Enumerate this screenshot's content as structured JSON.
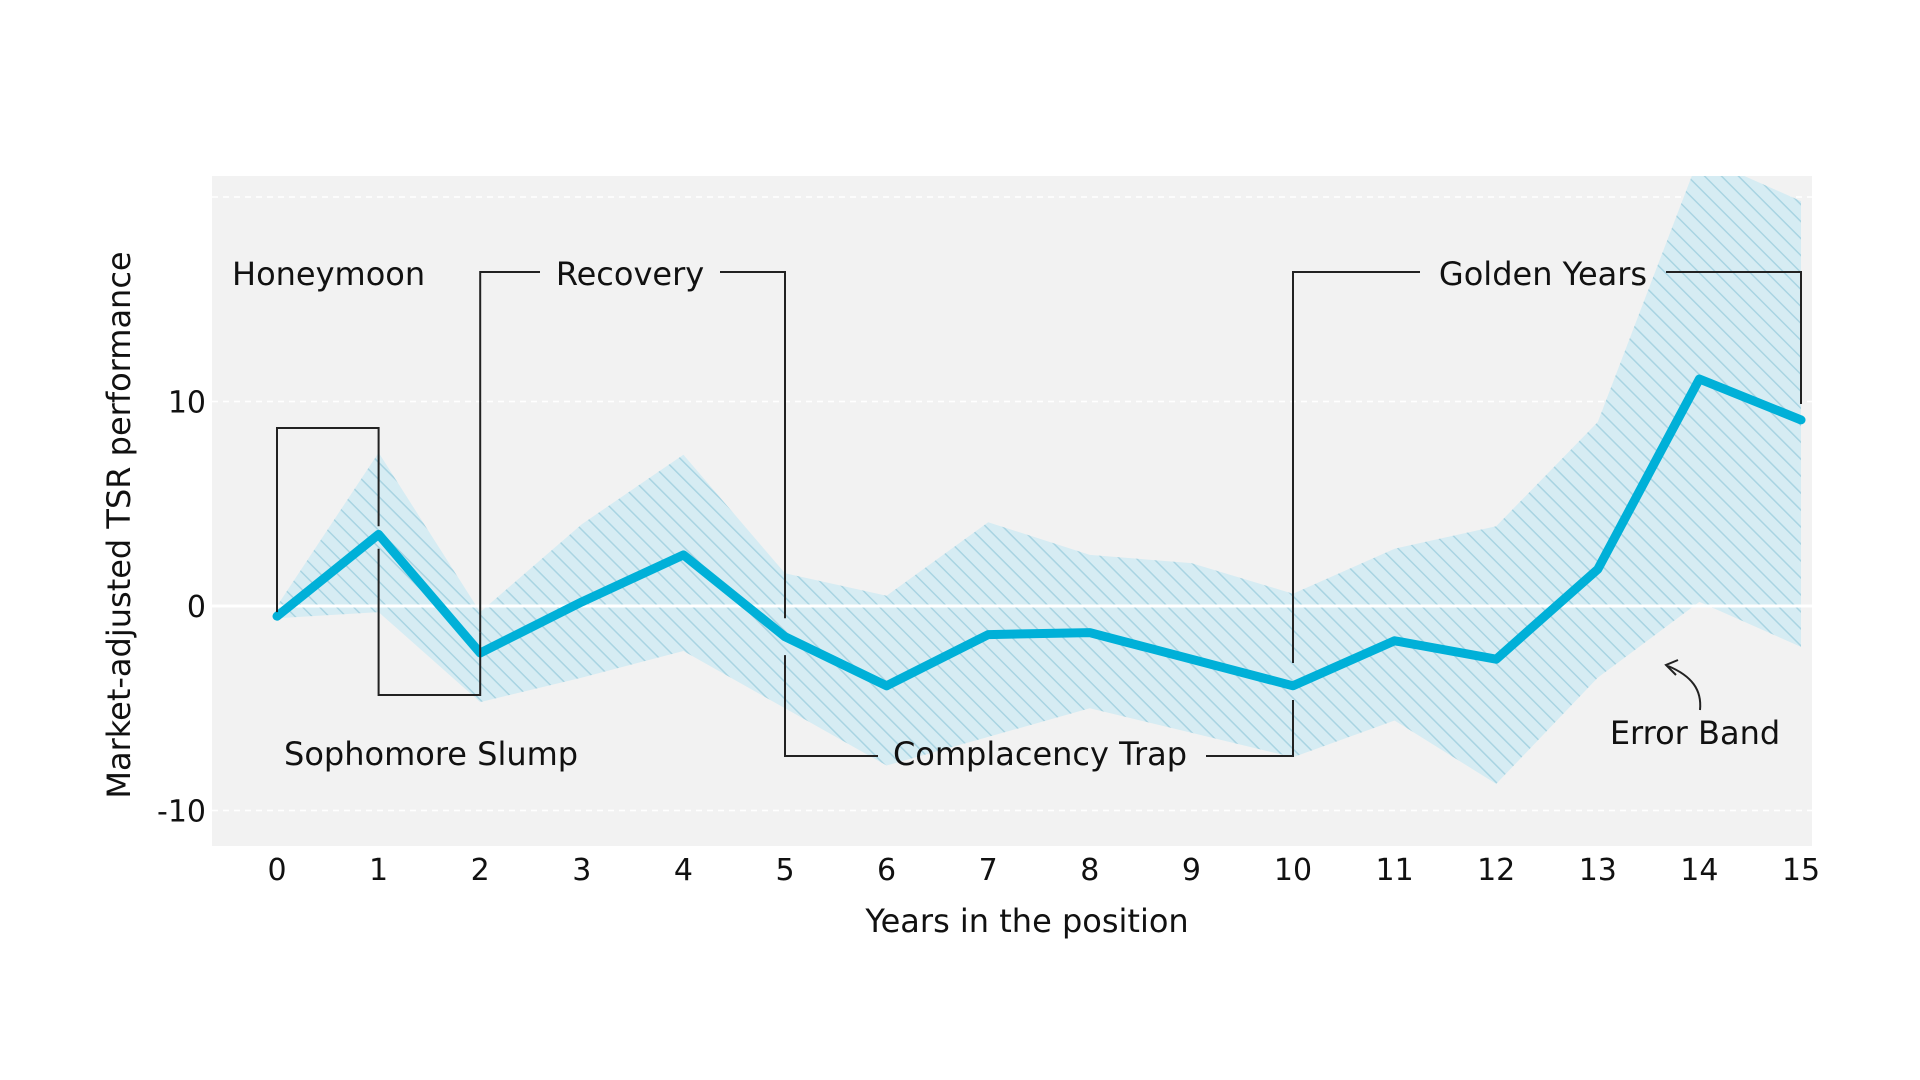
{
  "chart_data": {
    "type": "line",
    "title": "",
    "xlabel": "Years in the position",
    "ylabel": "Market-adjusted TSR performance",
    "xlim": [
      0,
      15
    ],
    "ylim": [
      -12,
      21
    ],
    "x_ticks": [
      "0",
      "1",
      "2",
      "3",
      "4",
      "5",
      "6",
      "7",
      "8",
      "9",
      "10",
      "11",
      "12",
      "13",
      "14",
      "15"
    ],
    "y_ticks": [
      "10",
      "0",
      "-10"
    ],
    "grid": "dashed horizontal lines at 20, 10, -10; solid line at 0",
    "series": [
      {
        "x": [
          0,
          1,
          2,
          3,
          4,
          5,
          6,
          7,
          8,
          9,
          10,
          11,
          12,
          13,
          14,
          15
        ],
        "y": [
          -0.5,
          3.5,
          -2.3,
          0.2,
          2.5,
          -1.5,
          -3.9,
          -1.4,
          -1.3,
          -2.6,
          -3.9,
          -1.7,
          -2.6,
          1.8,
          11.1,
          9.1
        ]
      }
    ],
    "error_band": {
      "upper": [
        0.0,
        7.5,
        -0.3,
        4.0,
        7.4,
        1.6,
        0.5,
        4.1,
        2.5,
        2.1,
        0.6,
        2.8,
        3.9,
        9.0,
        22.0,
        19.8
      ],
      "lower": [
        -0.6,
        -0.3,
        -4.7,
        -3.5,
        -2.2,
        -5.0,
        -7.8,
        -6.4,
        -5.0,
        -6.2,
        -7.4,
        -5.6,
        -8.7,
        -3.5,
        0.2,
        -2.0
      ]
    },
    "annotations": [
      {
        "text": "Honeymoon",
        "x_start": 0,
        "x_end": 1
      },
      {
        "text": "Sophomore Slump",
        "x_start": 1,
        "x_end": 2
      },
      {
        "text": "Recovery",
        "x_start": 2,
        "x_end": 5
      },
      {
        "text": "Complacency Trap",
        "x_start": 5,
        "x_end": 10
      },
      {
        "text": "Golden Years",
        "x_start": 10,
        "x_end": 15
      },
      {
        "text": "Error Band"
      }
    ],
    "colors": {
      "line": "#00b0d8",
      "band": "#d6ecf3",
      "band_hatch": "#a8d3e1",
      "plot_background": "#f2f2f2",
      "zero_line": "#ffffff"
    }
  }
}
